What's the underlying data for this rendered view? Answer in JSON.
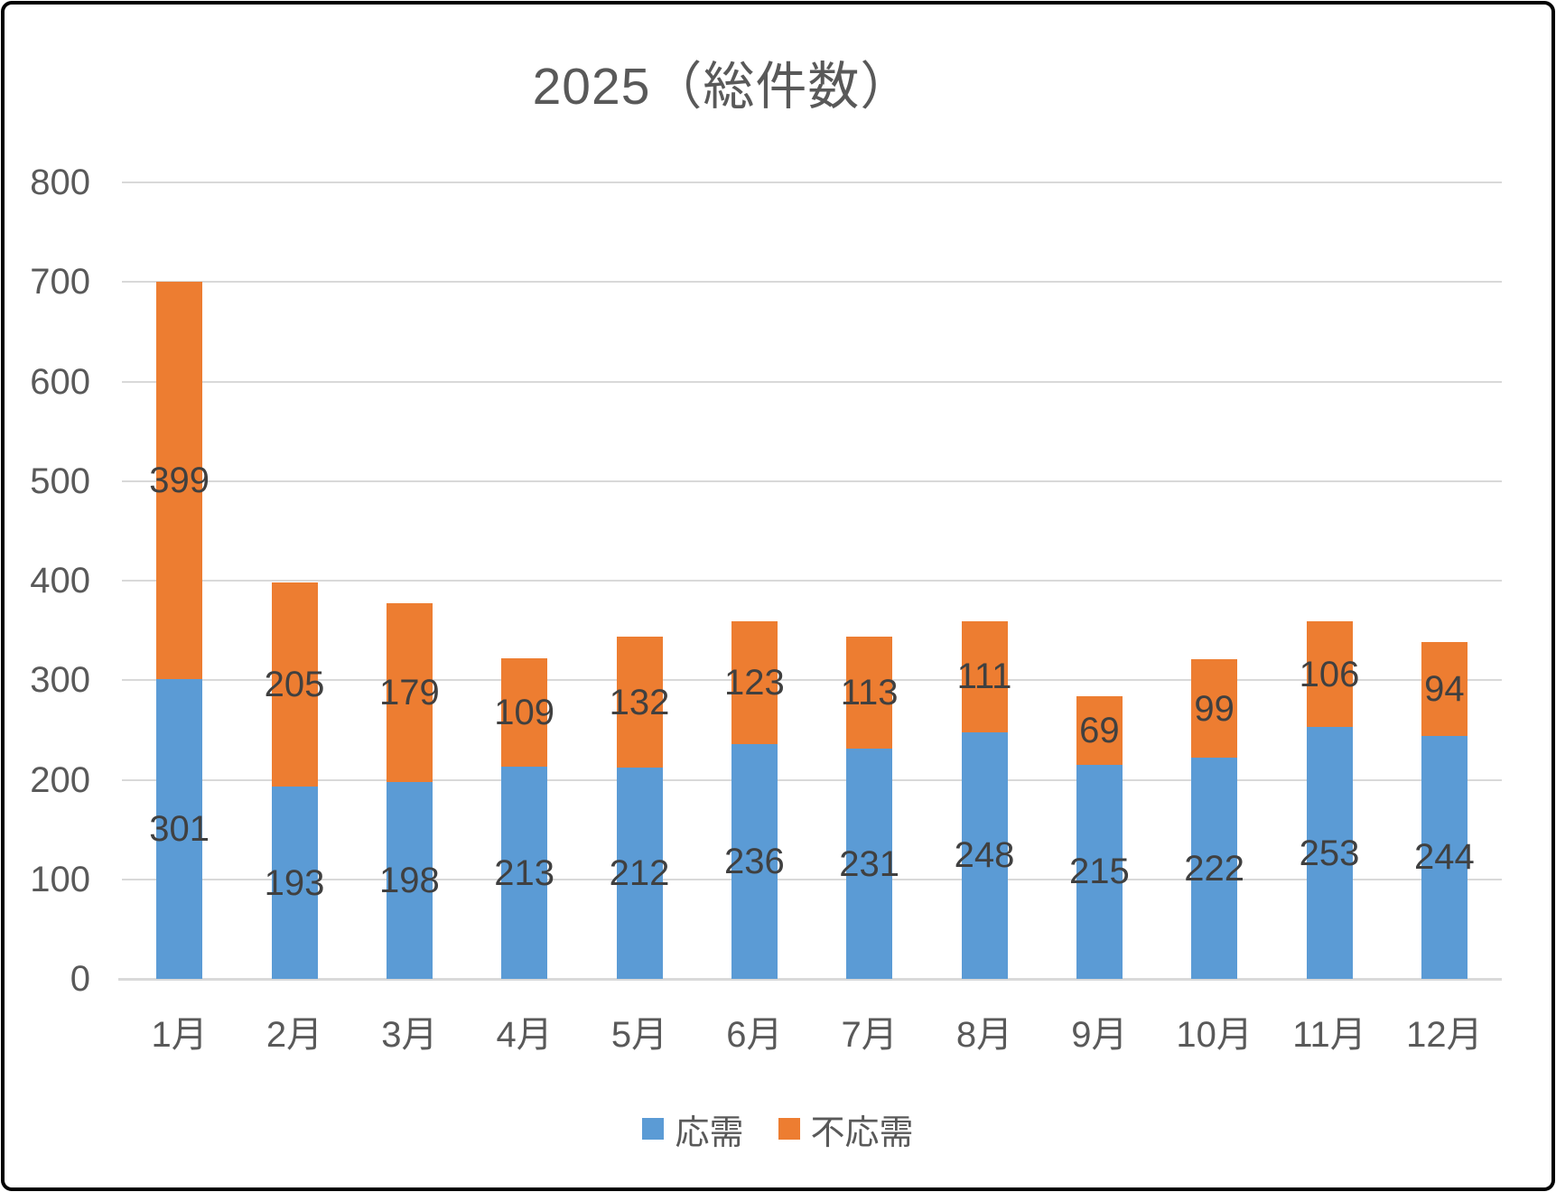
{
  "title": "2025（総件数）",
  "colors": {
    "series_blue": "#5B9BD5",
    "series_orange": "#ED7D31",
    "gridline": "#D9D9D9",
    "axis_text": "#595959",
    "data_label_text": "#404040",
    "title_text": "#595959",
    "border": "#000000",
    "background": "#FFFFFF"
  },
  "y_axis": {
    "tick_labels": [
      "800",
      "700",
      "600",
      "500",
      "400",
      "300",
      "200",
      "100",
      "0"
    ]
  },
  "legend": {
    "position": "bottom",
    "items": [
      {
        "label": "応需",
        "color": "#5B9BD5"
      },
      {
        "label": "不応需",
        "color": "#ED7D31"
      }
    ]
  },
  "chart_data": {
    "type": "bar",
    "stacked": true,
    "title": "2025（総件数）",
    "categories": [
      "1月",
      "2月",
      "3月",
      "4月",
      "5月",
      "6月",
      "7月",
      "8月",
      "9月",
      "10月",
      "11月",
      "12月"
    ],
    "series": [
      {
        "name": "応需",
        "color": "#5B9BD5",
        "values": [
          301,
          193,
          198,
          213,
          212,
          236,
          231,
          248,
          215,
          222,
          253,
          244
        ]
      },
      {
        "name": "不応需",
        "color": "#ED7D31",
        "values": [
          399,
          205,
          179,
          109,
          132,
          123,
          113,
          111,
          69,
          99,
          106,
          94
        ]
      }
    ],
    "totals": [
      700,
      398,
      377,
      322,
      344,
      359,
      344,
      359,
      284,
      321,
      359,
      338
    ],
    "ylim": [
      0,
      800
    ],
    "y_step": 100,
    "grid": true,
    "data_labels": true,
    "legend_position": "bottom"
  }
}
